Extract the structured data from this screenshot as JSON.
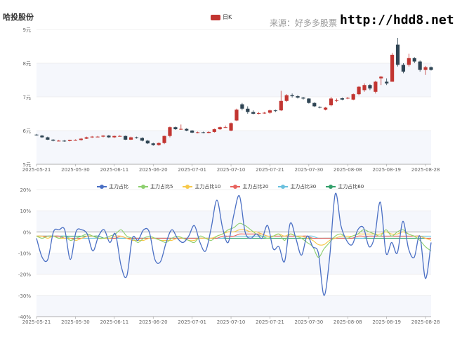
{
  "header": {
    "title": "哈投股份",
    "source": "来源：好多多股票",
    "url": "http://hdd8.net"
  },
  "colors": {
    "up": "#c23531",
    "down": "#2f4554",
    "band": "#f5f7fc",
    "series": [
      "#4a6fc4",
      "#8ccf6e",
      "#f7c94a",
      "#e8635e",
      "#6ac0de",
      "#33a06b"
    ]
  },
  "chart_data": [
    {
      "type": "candlestick",
      "legend": [
        "日K"
      ],
      "dates": [
        "2025-05-21",
        "2025-05-22",
        "2025-05-23",
        "2025-05-26",
        "2025-05-27",
        "2025-05-28",
        "2025-05-29",
        "2025-05-30",
        "2025-06-03",
        "2025-06-04",
        "2025-06-05",
        "2025-06-06",
        "2025-06-09",
        "2025-06-10",
        "2025-06-11",
        "2025-06-12",
        "2025-06-13",
        "2025-06-16",
        "2025-06-17",
        "2025-06-18",
        "2025-06-19",
        "2025-06-20",
        "2025-06-23",
        "2025-06-24",
        "2025-06-25",
        "2025-06-26",
        "2025-06-27",
        "2025-06-30",
        "2025-07-01",
        "2025-07-02",
        "2025-07-03",
        "2025-07-04",
        "2025-07-07",
        "2025-07-08",
        "2025-07-09",
        "2025-07-10",
        "2025-07-11",
        "2025-07-14",
        "2025-07-15",
        "2025-07-16",
        "2025-07-17",
        "2025-07-18",
        "2025-07-21",
        "2025-07-22",
        "2025-07-23",
        "2025-07-24",
        "2025-07-25",
        "2025-07-28",
        "2025-07-29",
        "2025-07-30",
        "2025-07-31",
        "2025-08-01",
        "2025-08-04",
        "2025-08-05",
        "2025-08-06",
        "2025-08-07",
        "2025-08-08",
        "2025-08-11",
        "2025-08-12",
        "2025-08-13",
        "2025-08-14",
        "2025-08-15",
        "2025-08-18",
        "2025-08-19",
        "2025-08-20",
        "2025-08-21",
        "2025-08-22",
        "2025-08-25",
        "2025-08-26",
        "2025-08-27",
        "2025-08-28"
      ],
      "ohlc": [
        [
          5.88,
          5.87,
          5.85,
          5.9
        ],
        [
          5.85,
          5.8,
          5.78,
          5.87
        ],
        [
          5.8,
          5.73,
          5.72,
          5.82
        ],
        [
          5.73,
          5.7,
          5.68,
          5.75
        ],
        [
          5.7,
          5.7,
          5.68,
          5.72
        ],
        [
          5.7,
          5.69,
          5.67,
          5.72
        ],
        [
          5.69,
          5.72,
          5.68,
          5.73
        ],
        [
          5.72,
          5.72,
          5.7,
          5.74
        ],
        [
          5.72,
          5.76,
          5.7,
          5.78
        ],
        [
          5.76,
          5.8,
          5.75,
          5.82
        ],
        [
          5.8,
          5.82,
          5.78,
          5.84
        ],
        [
          5.82,
          5.82,
          5.8,
          5.84
        ],
        [
          5.82,
          5.85,
          5.8,
          5.86
        ],
        [
          5.85,
          5.8,
          5.78,
          5.87
        ],
        [
          5.8,
          5.84,
          5.78,
          5.85
        ],
        [
          5.84,
          5.84,
          5.82,
          5.86
        ],
        [
          5.84,
          5.73,
          5.72,
          5.85
        ],
        [
          5.73,
          5.8,
          5.72,
          5.82
        ],
        [
          5.8,
          5.78,
          5.76,
          5.82
        ],
        [
          5.78,
          5.7,
          5.68,
          5.8
        ],
        [
          5.7,
          5.62,
          5.6,
          5.72
        ],
        [
          5.62,
          5.57,
          5.55,
          5.64
        ],
        [
          5.57,
          5.63,
          5.55,
          5.65
        ],
        [
          5.63,
          5.84,
          5.6,
          5.85
        ],
        [
          5.84,
          6.1,
          5.8,
          6.12
        ],
        [
          6.1,
          6.04,
          6.02,
          6.12
        ],
        [
          6.04,
          6.05,
          6.02,
          6.18
        ],
        [
          6.05,
          6.0,
          5.98,
          6.07
        ],
        [
          6.0,
          5.94,
          5.92,
          6.02
        ],
        [
          5.94,
          5.95,
          5.92,
          5.97
        ],
        [
          5.95,
          5.93,
          5.92,
          5.97
        ],
        [
          5.93,
          5.96,
          5.92,
          5.98
        ],
        [
          5.96,
          6.04,
          5.94,
          6.06
        ],
        [
          6.04,
          6.1,
          6.02,
          6.12
        ],
        [
          6.1,
          6.1,
          6.08,
          6.15
        ],
        [
          6.0,
          6.22,
          5.98,
          6.24
        ],
        [
          6.3,
          6.62,
          6.28,
          6.65
        ],
        [
          6.78,
          6.65,
          6.6,
          6.82
        ],
        [
          6.65,
          6.55,
          6.5,
          6.72
        ],
        [
          6.55,
          6.5,
          6.48,
          6.6
        ],
        [
          6.5,
          6.52,
          6.48,
          6.55
        ],
        [
          6.52,
          6.53,
          6.5,
          6.55
        ],
        [
          6.53,
          6.6,
          6.5,
          6.62
        ],
        [
          6.6,
          6.58,
          6.55,
          6.62
        ],
        [
          6.6,
          6.88,
          6.58,
          7.18
        ],
        [
          6.88,
          7.05,
          6.85,
          7.08
        ],
        [
          7.05,
          7.02,
          6.98,
          7.1
        ],
        [
          7.02,
          6.98,
          6.95,
          7.05
        ],
        [
          6.98,
          6.95,
          6.92,
          7.0
        ],
        [
          6.95,
          6.82,
          6.8,
          6.96
        ],
        [
          6.82,
          6.72,
          6.7,
          6.84
        ],
        [
          6.7,
          6.68,
          6.66,
          6.72
        ],
        [
          6.62,
          6.68,
          6.6,
          6.7
        ],
        [
          6.75,
          6.95,
          6.72,
          7.0
        ],
        [
          6.88,
          6.9,
          6.85,
          6.95
        ],
        [
          6.96,
          6.92,
          6.9,
          6.98
        ],
        [
          6.95,
          6.97,
          6.93,
          7.0
        ],
        [
          6.92,
          7.08,
          6.9,
          7.1
        ],
        [
          7.08,
          7.3,
          7.05,
          7.32
        ],
        [
          7.2,
          7.35,
          7.15,
          7.4
        ],
        [
          7.35,
          7.25,
          7.2,
          7.38
        ],
        [
          7.15,
          7.45,
          7.1,
          7.48
        ],
        [
          7.55,
          7.6,
          7.35,
          7.62
        ],
        [
          7.45,
          7.4,
          7.35,
          7.55
        ],
        [
          7.45,
          8.25,
          7.45,
          8.3
        ],
        [
          8.55,
          7.95,
          7.9,
          8.75
        ],
        [
          7.95,
          7.75,
          7.7,
          8.0
        ],
        [
          7.95,
          8.15,
          7.9,
          8.28
        ],
        [
          8.15,
          8.05,
          8.0,
          8.18
        ],
        [
          8.05,
          7.8,
          7.75,
          8.08
        ],
        [
          7.8,
          7.88,
          7.65,
          7.92
        ],
        [
          7.88,
          7.8,
          7.78,
          7.9
        ]
      ],
      "y_ticks": [
        "5元",
        "6元",
        "7元",
        "8元",
        "9元"
      ],
      "ylim": [
        5,
        9
      ],
      "x_ticks": [
        "2025-05-21",
        "2025-05-30",
        "2025-06-11",
        "2025-06-20",
        "2025-07-01",
        "2025-07-10",
        "2025-07-21",
        "2025-07-30",
        "2025-08-08",
        "2025-08-19",
        "2025-08-28"
      ]
    },
    {
      "type": "line",
      "legend_position": "top-center",
      "series": [
        {
          "name": "主力占比",
          "values": [
            -3,
            -12,
            -13,
            0,
            1,
            1,
            -13,
            0,
            1,
            -1,
            -9,
            -2,
            1,
            -5,
            -1,
            -16,
            -21,
            -3,
            -4,
            1,
            0,
            -13,
            -14,
            -5,
            1,
            -3,
            -5,
            -2,
            3,
            -5,
            -9,
            2,
            15,
            2,
            -5,
            8,
            17,
            0,
            -3,
            -1,
            -3,
            3,
            -8,
            -7,
            -14,
            4,
            -3,
            -11,
            -2,
            -7,
            -10,
            -30,
            -12,
            18,
            3,
            -4,
            -6,
            1,
            2,
            -7,
            -2,
            14,
            -10,
            -5,
            -10,
            5,
            -8,
            -12,
            -2,
            -22,
            -5
          ]
        },
        {
          "name": "主力占比5",
          "values": [
            -2,
            -3,
            -2,
            -2,
            -3,
            -2,
            -4,
            -3,
            -2,
            -1,
            -2,
            -3,
            -3,
            -2,
            -1,
            1,
            -2,
            -3,
            -5,
            -3,
            -2,
            -3,
            -4,
            -5,
            -3,
            -2,
            -3,
            -4,
            -5,
            -2,
            -3,
            -4,
            -2,
            -1,
            1,
            2,
            4,
            3,
            1,
            -1,
            -2,
            -3,
            -2,
            -1,
            -4,
            -1,
            -2,
            -3,
            -5,
            -7,
            -12,
            -8,
            -5,
            -2,
            -1,
            -3,
            -2,
            -1,
            1,
            0,
            -1,
            -2,
            1,
            -2,
            0,
            1,
            -1,
            -2,
            -4,
            -7,
            -9
          ]
        },
        {
          "name": "主力占比10",
          "values": [
            -2,
            -2,
            -3,
            -2,
            -3,
            -3,
            -3,
            -4,
            -3,
            -2,
            -2,
            -3,
            -3,
            -3,
            -2,
            -2,
            -3,
            -4,
            -4,
            -4,
            -3,
            -3,
            -4,
            -4,
            -4,
            -3,
            -3,
            -4,
            -4,
            -3,
            -3,
            -3,
            -2,
            -1,
            0,
            0,
            1,
            1,
            0,
            0,
            -1,
            -2,
            -2,
            -1,
            -2,
            -1,
            -2,
            -2,
            -3,
            -4,
            -6,
            -6,
            -4,
            -3,
            -2,
            -2,
            -2,
            -1,
            -1,
            -1,
            -1,
            -1,
            0,
            -1,
            -1,
            0,
            -1,
            -2,
            -2,
            -3,
            -4
          ]
        },
        {
          "name": "主力占比20",
          "values": [
            -2,
            -2,
            -2,
            -2,
            -2,
            -3,
            -3,
            -3,
            -3,
            -2,
            -2,
            -3,
            -3,
            -3,
            -3,
            -2,
            -3,
            -3,
            -3,
            -3,
            -3,
            -3,
            -3,
            -3,
            -3,
            -3,
            -3,
            -3,
            -3,
            -3,
            -3,
            -3,
            -3,
            -2,
            -2,
            -2,
            -1,
            -1,
            -1,
            -1,
            -1,
            -2,
            -2,
            -2,
            -2,
            -2,
            -2,
            -2,
            -2,
            -3,
            -3,
            -3,
            -3,
            -3,
            -3,
            -3,
            -3,
            -2,
            -2,
            -2,
            -2,
            -2,
            -2,
            -2,
            -2,
            -2,
            -2,
            -2,
            -2,
            -3,
            -3
          ]
        },
        {
          "name": "主力占比30",
          "values": [
            -2,
            -2,
            -2,
            -2,
            -2,
            -2,
            -3,
            -3,
            -3,
            -3,
            -3,
            -3,
            -3,
            -3,
            -3,
            -3,
            -3,
            -3,
            -3,
            -3,
            -3,
            -3,
            -3,
            -3,
            -3,
            -3,
            -3,
            -3,
            -3,
            -3,
            -3,
            -3,
            -3,
            -3,
            -2,
            -2,
            -2,
            -2,
            -2,
            -2,
            -2,
            -2,
            -2,
            -2,
            -2,
            -2,
            -2,
            -2,
            -2,
            -2,
            -3,
            -3,
            -3,
            -3,
            -3,
            -3,
            -3,
            -3,
            -3,
            -2,
            -2,
            -2,
            -2,
            -2,
            -2,
            -2,
            -2,
            -2,
            -2,
            -2,
            -2
          ]
        },
        {
          "name": "主力占比60",
          "values": [
            -2,
            -2,
            -2,
            -2,
            -2,
            -2,
            -2,
            -2,
            -2,
            -2,
            -2,
            -2,
            -3,
            -3,
            -3,
            -3,
            -3,
            -3,
            -3,
            -3,
            -3,
            -3,
            -3,
            -3,
            -3,
            -3,
            -3,
            -3,
            -3,
            -3,
            -3,
            -3,
            -3,
            -3,
            -3,
            -3,
            -3,
            -3,
            -3,
            -3,
            -3,
            -3,
            -3,
            -3,
            -3,
            -3,
            -3,
            -3,
            -3,
            -3,
            -3,
            -3,
            -3,
            -3,
            -3,
            -3,
            -3,
            -3,
            -3,
            -3,
            -3,
            -3,
            -3,
            -3,
            -3,
            -3,
            -3,
            -3,
            -3,
            -3,
            -3
          ]
        }
      ],
      "y_ticks": [
        "-40%",
        "-30%",
        "-20%",
        "-10%",
        "0%",
        "10%",
        "20%"
      ],
      "ylim": [
        -40,
        20
      ],
      "x_ticks": [
        "2025-05-21",
        "2025-05-30",
        "2025-06-11",
        "2025-06-20",
        "2025-07-01",
        "2025-07-10",
        "2025-07-21",
        "2025-07-30",
        "2025-08-08",
        "2025-08-19",
        "2025-08-28"
      ]
    }
  ]
}
